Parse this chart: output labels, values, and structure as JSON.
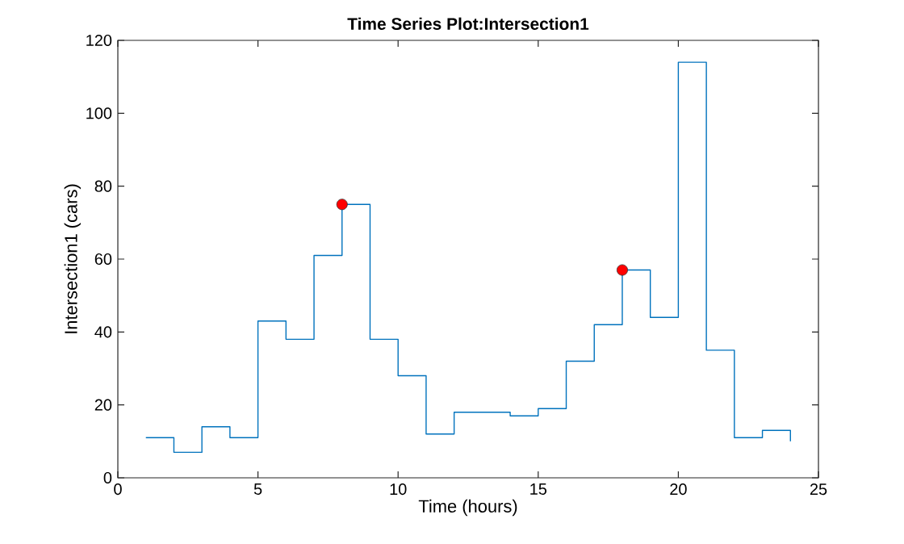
{
  "chart_data": {
    "type": "step",
    "title": "Time Series Plot:Intersection1",
    "xlabel": "Time (hours)",
    "ylabel": "Intersection1 (cars)",
    "xlim": [
      0,
      25
    ],
    "xticks": [
      0,
      5,
      10,
      15,
      20,
      25
    ],
    "ylim": [
      0,
      120
    ],
    "yticks": [
      0,
      20,
      40,
      60,
      80,
      100,
      120
    ],
    "series": [
      {
        "color": "#0072bd",
        "marker": "none",
        "x": [
          1,
          2,
          3,
          4,
          5,
          6,
          7,
          8,
          9,
          10,
          11,
          12,
          13,
          14,
          15,
          16,
          17,
          18,
          19,
          20,
          21,
          22,
          23,
          24
        ],
        "values": [
          11,
          7,
          14,
          11,
          43,
          38,
          61,
          75,
          38,
          28,
          12,
          18,
          18,
          17,
          19,
          32,
          42,
          57,
          44,
          114,
          35,
          11,
          13,
          10
        ]
      },
      {
        "type": "scatter",
        "color": "#ff0000",
        "marker": "circle",
        "x": [
          8,
          18
        ],
        "values": [
          75,
          57
        ]
      }
    ]
  }
}
